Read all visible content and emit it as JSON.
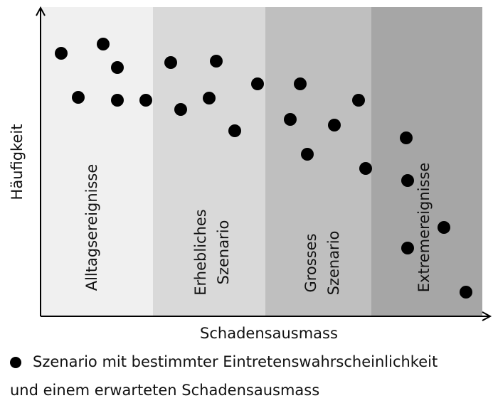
{
  "axes": {
    "y_label": "Häufigkeit",
    "x_label": "Schadensausmass"
  },
  "zones": [
    {
      "lines": [
        "Alltagsereignisse"
      ]
    },
    {
      "lines": [
        "Erhebliches",
        "Szenario"
      ]
    },
    {
      "lines": [
        "Grosses",
        "Szenario"
      ]
    },
    {
      "lines": [
        "Extremereignisse"
      ]
    }
  ],
  "legend": {
    "lines": [
      "Szenario mit bestimmter Eintretenswahrscheinlichkeit",
      "und einem erwarteten Schadensausmass"
    ]
  }
}
